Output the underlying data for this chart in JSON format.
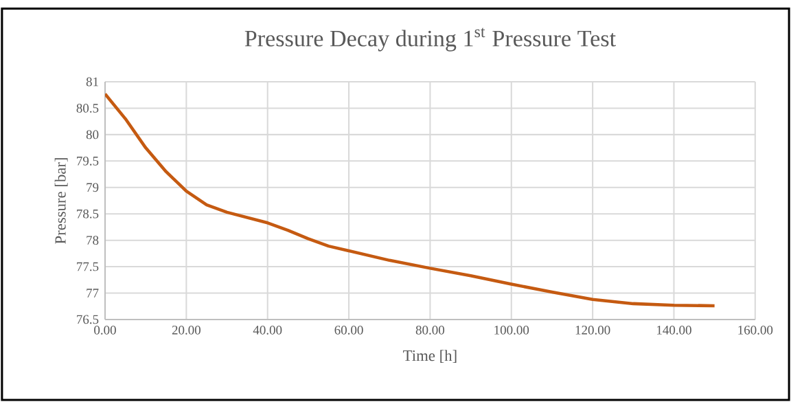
{
  "chart_data": {
    "type": "line",
    "title": "Pressure Decay during 1$^{st}$ Pressure Test",
    "xlabel": "Time [h]",
    "ylabel": "Pressure [bar]",
    "x": [
      0,
      5,
      10,
      15,
      20,
      25,
      30,
      35,
      40,
      45,
      50,
      55,
      60,
      70,
      80,
      90,
      100,
      110,
      120,
      130,
      140,
      150
    ],
    "series": [
      {
        "color": "#c55a11",
        "values": [
          80.77,
          80.3,
          79.75,
          79.3,
          78.93,
          78.67,
          78.53,
          78.43,
          78.33,
          78.19,
          78.03,
          77.89,
          77.8,
          77.62,
          77.47,
          77.33,
          77.17,
          77.02,
          76.88,
          76.8,
          76.77,
          76.76
        ]
      }
    ],
    "xlim": [
      0,
      160
    ],
    "ylim": [
      76.5,
      81
    ],
    "xticks": [
      {
        "value": 0,
        "label": "0.00"
      },
      {
        "value": 20,
        "label": "20.00"
      },
      {
        "value": 40,
        "label": "40.00"
      },
      {
        "value": 60,
        "label": "60.00"
      },
      {
        "value": 80,
        "label": "80.00"
      },
      {
        "value": 100,
        "label": "100.00"
      },
      {
        "value": 120,
        "label": "120.00"
      },
      {
        "value": 140,
        "label": "140.00"
      },
      {
        "value": 160,
        "label": "160.00"
      }
    ],
    "yticks": [
      76.5,
      77,
      77.5,
      78,
      78.5,
      79,
      79.5,
      80,
      80.5,
      81
    ],
    "grid": true,
    "marker": "none",
    "line_style": "solid"
  }
}
